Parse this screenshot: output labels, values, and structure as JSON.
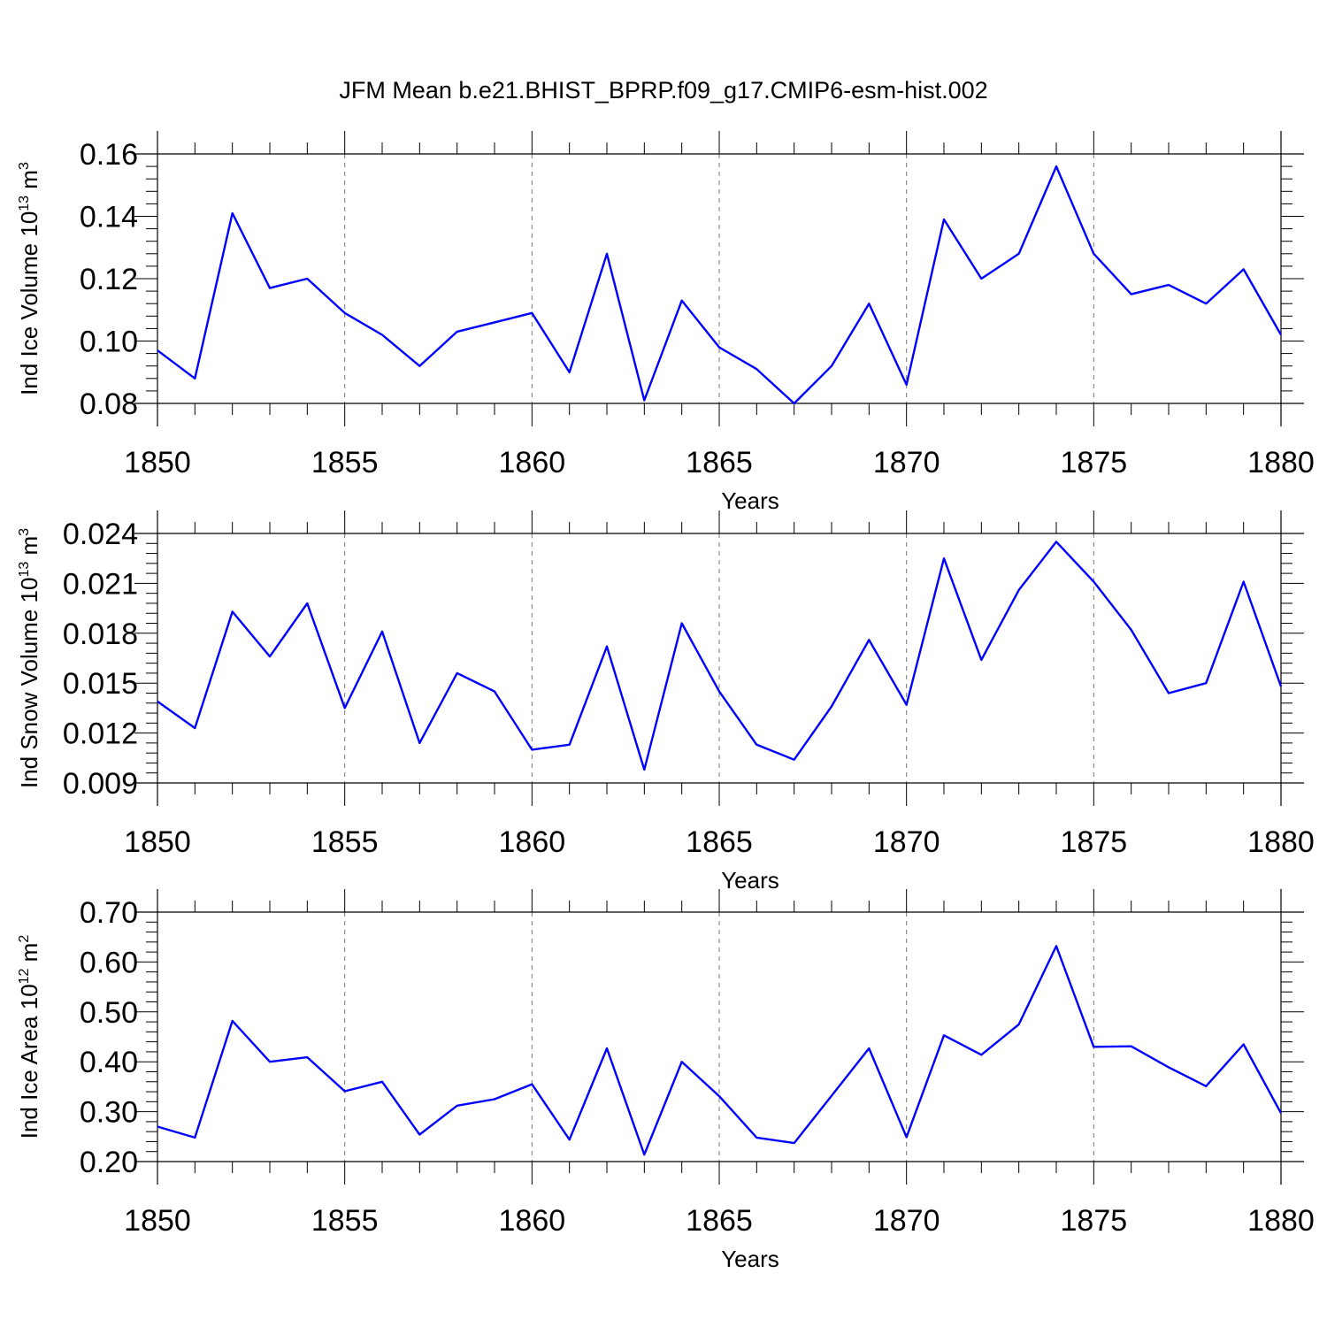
{
  "title": "JFM Mean b.e21.BHIST_BPRP.f09_g17.CMIP6-esm-hist.002",
  "chart_data": [
    {
      "type": "line",
      "ylabel": {
        "prefix": "Ind Ice Volume 10",
        "exp": "13",
        "unit": " m",
        "unit_exp": "3"
      },
      "xlabel": "Years",
      "xlim": [
        1850,
        1880
      ],
      "ylim": [
        0.08,
        0.16
      ],
      "yticks": [
        0.08,
        0.1,
        0.12,
        0.14,
        0.16
      ],
      "ytick_labels": [
        "0.08",
        "0.10",
        "0.12",
        "0.14",
        "0.16"
      ],
      "xticks": [
        1850,
        1855,
        1860,
        1865,
        1870,
        1875,
        1880
      ],
      "xtick_labels": [
        "1850",
        "1855",
        "1860",
        "1865",
        "1870",
        "1875",
        "1880"
      ],
      "grid": "dashed vertical at major x ticks",
      "color": "#0000ff",
      "x": [
        1850,
        1851,
        1852,
        1853,
        1854,
        1855,
        1856,
        1857,
        1858,
        1859,
        1860,
        1861,
        1862,
        1863,
        1864,
        1865,
        1866,
        1867,
        1868,
        1869,
        1870,
        1871,
        1872,
        1873,
        1874,
        1875,
        1876,
        1877,
        1878,
        1879,
        1880
      ],
      "values": [
        0.097,
        0.088,
        0.141,
        0.117,
        0.12,
        0.109,
        0.102,
        0.092,
        0.103,
        0.106,
        0.109,
        0.09,
        0.128,
        0.081,
        0.113,
        0.098,
        0.091,
        0.08,
        0.092,
        0.112,
        0.086,
        0.139,
        0.12,
        0.128,
        0.156,
        0.128,
        0.115,
        0.118,
        0.112,
        0.123,
        0.102
      ]
    },
    {
      "type": "line",
      "ylabel": {
        "prefix": "Ind Snow Volume 10",
        "exp": "13",
        "unit": " m",
        "unit_exp": "3"
      },
      "xlabel": "Years",
      "xlim": [
        1850,
        1880
      ],
      "ylim": [
        0.009,
        0.024
      ],
      "yticks": [
        0.009,
        0.012,
        0.015,
        0.018,
        0.021,
        0.024
      ],
      "ytick_labels": [
        "0.009",
        "0.012",
        "0.015",
        "0.018",
        "0.021",
        "0.024"
      ],
      "xticks": [
        1850,
        1855,
        1860,
        1865,
        1870,
        1875,
        1880
      ],
      "xtick_labels": [
        "1850",
        "1855",
        "1860",
        "1865",
        "1870",
        "1875",
        "1880"
      ],
      "grid": "dashed vertical at major x ticks",
      "color": "#0000ff",
      "x": [
        1850,
        1851,
        1852,
        1853,
        1854,
        1855,
        1856,
        1857,
        1858,
        1859,
        1860,
        1861,
        1862,
        1863,
        1864,
        1865,
        1866,
        1867,
        1868,
        1869,
        1870,
        1871,
        1872,
        1873,
        1874,
        1875,
        1876,
        1877,
        1878,
        1879,
        1880
      ],
      "values": [
        0.0139,
        0.0123,
        0.0193,
        0.0166,
        0.0198,
        0.0135,
        0.0181,
        0.0114,
        0.0156,
        0.0145,
        0.011,
        0.0113,
        0.0172,
        0.0098,
        0.0186,
        0.0145,
        0.0113,
        0.0104,
        0.0136,
        0.0176,
        0.0137,
        0.0225,
        0.0164,
        0.0206,
        0.0235,
        0.0211,
        0.0182,
        0.0144,
        0.015,
        0.0211,
        0.0148
      ]
    },
    {
      "type": "line",
      "ylabel": {
        "prefix": "Ind Ice Area 10",
        "exp": "12",
        "unit": " m",
        "unit_exp": "2"
      },
      "xlabel": "Years",
      "xlim": [
        1850,
        1880
      ],
      "ylim": [
        0.2,
        0.7
      ],
      "yticks": [
        0.2,
        0.3,
        0.4,
        0.5,
        0.6,
        0.7
      ],
      "ytick_labels": [
        "0.20",
        "0.30",
        "0.40",
        "0.50",
        "0.60",
        "0.70"
      ],
      "xticks": [
        1850,
        1855,
        1860,
        1865,
        1870,
        1875,
        1880
      ],
      "xtick_labels": [
        "1850",
        "1855",
        "1860",
        "1865",
        "1870",
        "1875",
        "1880"
      ],
      "grid": "dashed vertical at major x ticks",
      "color": "#0000ff",
      "x": [
        1850,
        1851,
        1852,
        1853,
        1854,
        1855,
        1856,
        1857,
        1858,
        1859,
        1860,
        1861,
        1862,
        1863,
        1864,
        1865,
        1866,
        1867,
        1868,
        1869,
        1870,
        1871,
        1872,
        1873,
        1874,
        1875,
        1876,
        1877,
        1878,
        1879,
        1880
      ],
      "values": [
        0.27,
        0.248,
        0.482,
        0.4,
        0.409,
        0.341,
        0.36,
        0.254,
        0.312,
        0.325,
        0.355,
        0.244,
        0.427,
        0.214,
        0.4,
        0.331,
        0.248,
        0.237,
        0.332,
        0.427,
        0.249,
        0.453,
        0.414,
        0.475,
        0.632,
        0.43,
        0.431,
        0.389,
        0.351,
        0.435,
        0.297
      ]
    }
  ]
}
